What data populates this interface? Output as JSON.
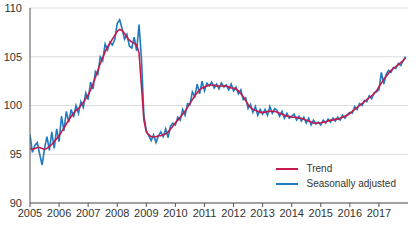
{
  "chart_data": {
    "type": "line",
    "x": [
      2005,
      2005.083,
      2005.167,
      2005.25,
      2005.333,
      2005.417,
      2005.5,
      2005.583,
      2005.667,
      2005.75,
      2005.833,
      2005.917,
      2006,
      2006.083,
      2006.167,
      2006.25,
      2006.333,
      2006.417,
      2006.5,
      2006.583,
      2006.667,
      2006.75,
      2006.833,
      2006.917,
      2007,
      2007.083,
      2007.167,
      2007.25,
      2007.333,
      2007.417,
      2007.5,
      2007.583,
      2007.667,
      2007.75,
      2007.833,
      2007.917,
      2008,
      2008.083,
      2008.167,
      2008.25,
      2008.333,
      2008.417,
      2008.5,
      2008.583,
      2008.667,
      2008.75,
      2008.833,
      2008.917,
      2009,
      2009.083,
      2009.167,
      2009.25,
      2009.333,
      2009.417,
      2009.5,
      2009.583,
      2009.667,
      2009.75,
      2009.833,
      2009.917,
      2010,
      2010.083,
      2010.167,
      2010.25,
      2010.333,
      2010.417,
      2010.5,
      2010.583,
      2010.667,
      2010.75,
      2010.833,
      2010.917,
      2011,
      2011.083,
      2011.167,
      2011.25,
      2011.333,
      2011.417,
      2011.5,
      2011.583,
      2011.667,
      2011.75,
      2011.833,
      2011.917,
      2012,
      2012.083,
      2012.167,
      2012.25,
      2012.333,
      2012.417,
      2012.5,
      2012.583,
      2012.667,
      2012.75,
      2012.833,
      2012.917,
      2013,
      2013.083,
      2013.167,
      2013.25,
      2013.333,
      2013.417,
      2013.5,
      2013.583,
      2013.667,
      2013.75,
      2013.833,
      2013.917,
      2014,
      2014.083,
      2014.167,
      2014.25,
      2014.333,
      2014.417,
      2014.5,
      2014.583,
      2014.667,
      2014.75,
      2014.833,
      2014.917,
      2015,
      2015.083,
      2015.167,
      2015.25,
      2015.333,
      2015.417,
      2015.5,
      2015.583,
      2015.667,
      2015.75,
      2015.833,
      2015.917,
      2016,
      2016.083,
      2016.167,
      2016.25,
      2016.333,
      2016.417,
      2016.5,
      2016.583,
      2016.667,
      2016.75,
      2016.833,
      2016.917,
      2017,
      2017.083,
      2017.167,
      2017.25,
      2017.333,
      2017.417,
      2017.5,
      2017.583,
      2017.667,
      2017.75,
      2017.833,
      2017.917
    ],
    "xlim": [
      2005,
      2018
    ],
    "xticks": [
      2005,
      2006,
      2007,
      2008,
      2009,
      2010,
      2011,
      2012,
      2013,
      2014,
      2015,
      2016,
      2017
    ],
    "ylim": [
      90,
      110
    ],
    "yticks": [
      90,
      95,
      100,
      105,
      110
    ],
    "grid": true,
    "legend": "lower right",
    "series": [
      {
        "name": "Trend",
        "color": "#c8194b",
        "values": [
          95.6,
          95.5,
          95.6,
          95.7,
          95.7,
          95.6,
          95.5,
          95.6,
          95.8,
          96.0,
          96.3,
          96.6,
          96.9,
          97.3,
          97.7,
          98.1,
          98.5,
          98.9,
          99.2,
          99.5,
          99.7,
          100.0,
          100.3,
          100.7,
          101.1,
          101.6,
          102.2,
          102.9,
          103.6,
          104.3,
          104.9,
          105.5,
          106.0,
          106.4,
          106.8,
          107.2,
          107.6,
          107.8,
          107.7,
          107.4,
          107.0,
          106.7,
          106.5,
          106.4,
          106.2,
          105.4,
          102.0,
          98.5,
          97.3,
          97.0,
          96.8,
          96.8,
          96.8,
          96.9,
          96.9,
          97.0,
          97.1,
          97.3,
          97.6,
          97.9,
          98.2,
          98.5,
          98.8,
          99.1,
          99.4,
          99.8,
          100.2,
          100.6,
          101.0,
          101.3,
          101.6,
          101.8,
          101.9,
          102.0,
          102.1,
          102.1,
          102.1,
          102.0,
          102.0,
          102.0,
          102.0,
          102.0,
          101.9,
          101.8,
          101.8,
          101.7,
          101.5,
          101.2,
          100.9,
          100.5,
          100.1,
          99.8,
          99.6,
          99.5,
          99.4,
          99.3,
          99.3,
          99.3,
          99.4,
          99.4,
          99.4,
          99.4,
          99.3,
          99.2,
          99.1,
          99.0,
          98.9,
          98.9,
          98.8,
          98.8,
          98.8,
          98.7,
          98.7,
          98.6,
          98.5,
          98.4,
          98.3,
          98.2,
          98.2,
          98.2,
          98.2,
          98.3,
          98.3,
          98.4,
          98.5,
          98.5,
          98.6,
          98.6,
          98.7,
          98.8,
          98.9,
          99.0,
          99.2,
          99.4,
          99.6,
          99.8,
          100.0,
          100.2,
          100.4,
          100.6,
          100.8,
          101.0,
          101.2,
          101.5,
          101.9,
          102.3,
          102.7,
          103.0,
          103.3,
          103.6,
          103.8,
          104.0,
          104.2,
          104.4,
          104.6,
          104.9
        ]
      },
      {
        "name": "Seasonally adjusted",
        "color": "#1f7ac0",
        "values": [
          97.0,
          95.2,
          95.9,
          96.2,
          95.0,
          93.9,
          95.6,
          96.8,
          95.4,
          97.3,
          95.6,
          97.6,
          96.3,
          98.9,
          97.4,
          99.4,
          98.3,
          99.6,
          98.8,
          100.0,
          99.2,
          100.4,
          99.8,
          101.3,
          100.6,
          102.4,
          101.7,
          103.5,
          103.2,
          105.0,
          104.6,
          106.3,
          105.7,
          106.5,
          106.2,
          106.8,
          108.4,
          108.8,
          107.9,
          106.8,
          107.3,
          106.1,
          105.9,
          107.0,
          105.6,
          108.3,
          104.8,
          99.0,
          97.4,
          96.9,
          96.4,
          97.0,
          96.2,
          96.9,
          97.3,
          96.8,
          97.6,
          96.7,
          97.9,
          98.2,
          98.0,
          98.8,
          98.5,
          99.6,
          99.0,
          100.2,
          100.1,
          101.4,
          100.9,
          102.2,
          101.2,
          102.5,
          101.5,
          102.3,
          102.0,
          102.4,
          101.8,
          102.2,
          101.7,
          102.3,
          101.9,
          102.1,
          101.6,
          102.2,
          101.5,
          101.9,
          101.2,
          101.6,
          100.6,
          100.8,
          99.7,
          100.1,
          99.3,
          99.9,
          99.0,
          99.6,
          99.1,
          99.6,
          99.0,
          99.9,
          99.2,
          99.7,
          99.5,
          98.9,
          99.4,
          98.7,
          99.2,
          98.7,
          98.9,
          99.1,
          98.5,
          98.9,
          98.4,
          98.8,
          98.2,
          98.7,
          98.0,
          98.5,
          98.1,
          98.3,
          98.0,
          98.5,
          98.2,
          98.6,
          98.3,
          98.7,
          98.4,
          98.8,
          98.5,
          99.0,
          98.7,
          99.1,
          99.3,
          99.2,
          99.9,
          99.6,
          100.2,
          100.0,
          100.5,
          100.4,
          101.0,
          100.7,
          101.3,
          101.4,
          101.6,
          103.4,
          102.2,
          103.2,
          103.6,
          103.4,
          103.9,
          103.8,
          104.3,
          104.1,
          104.6,
          105.0
        ]
      }
    ]
  }
}
